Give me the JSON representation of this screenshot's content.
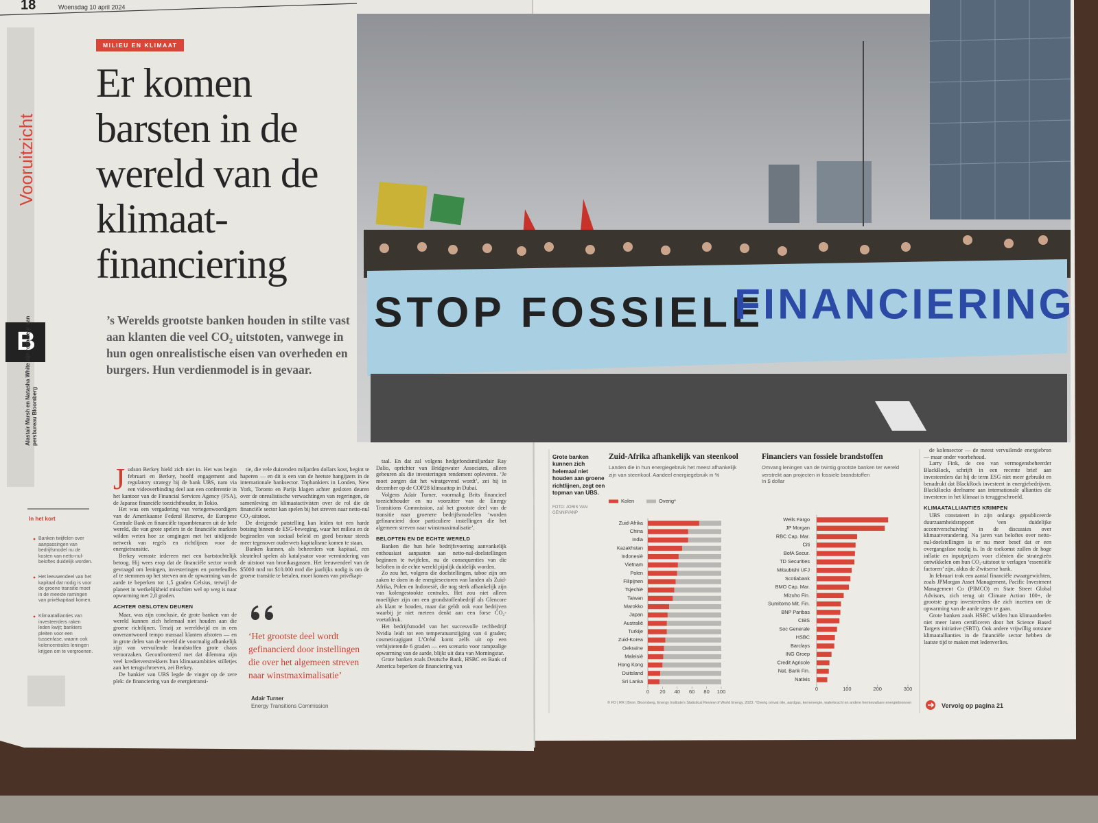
{
  "header": {
    "page_number": "18",
    "date": "Woensdag 10 april 2024"
  },
  "section_label": "Vooruitzicht",
  "section_letter": "B",
  "byline": "Alastair Marsh en Natasha White zijn redacteur van persbureau Bloomberg",
  "kicker": "MILIEU EN KLIMAAT",
  "headline": "Er komen barsten in de wereld van de klimaat-financiering",
  "lead": "’s Werelds grootste banken houden in stilte vast aan klanten die veel CO₂ uitstoten, vanwege in hun ogen onrealistische eisen van overheden en burgers. Hun verdienmodel is in gevaar.",
  "photo": {
    "banner_dark": "STOP FOSSIELE",
    "banner_blue": "FINANCIERING"
  },
  "photo_caption": {
    "text": "Grote banken kunnen zich helemaal niet houden aan groene richtlijnen, zegt een topman van UBS.",
    "credit": "FOTO: JORIS VAN GENNIP/ANP"
  },
  "sidebar": {
    "title": "In het kort",
    "items": [
      "Banken twijfelen over aanpassingen van bedrijfsmodel nu de kosten van netto-nul-beloftes duidelijk worden.",
      "Het leeuwendeel van het kapitaal dat nodig is voor de groene transitie moet in de meeste ramingen van privékapitaal komen.",
      "Klimaatallianties van investeerders raken leden kwijt; bankiers pleiten voor een tussenfase, waarin ook kolencentrales leningen krijgen om te vergroenen."
    ]
  },
  "columns": [
    [
      {
        "type": "p",
        "text": "Judson Berkey hield zich niet in. Het was begin februari en Berkey, hoofd engagement and regulatory strategy bij de bank UBS, nam via een videoverbinding deel aan een conferentie in het kantoor van de Financial Services Agency (FSA), de Japanse financiële toezichthouder, in Tokio."
      },
      {
        "type": "p",
        "text": "Het was een vergadering van vertegenwoordigers van de Amerikaanse Federal Reserve, de Europese Centrale Bank en financiële topambtenaren uit de hele wereld, die van grote spelers in de financiële markten wilden weten hoe ze omgingen met het uitdijende netwerk van regels en richtlijnen voor de energietransitie."
      },
      {
        "type": "p",
        "text": "Berkey verraste iedereen met een hartstochtelijk betoog. Hij wees erop dat de financiële sector wordt gevraagd om leningen, investeringen en portefeuilles af te stemmen op het streven om de opwarming van de aarde te beperken tot 1,5 graden Celsius, terwijl de planeet in werkelijkheid misschien wel op weg is naar opwarming met 2,8 graden."
      },
      {
        "type": "h",
        "text": "ACHTER GESLOTEN DEUREN"
      },
      {
        "type": "p",
        "text": "Maar, was zijn conclusie, de grote banken van de wereld kunnen zich helemaal niet houden aan die groene richtlijnen. Tenzij ze wereldwijd en in een onverantwoord tempo massaal klanten afstoten — en in grote delen van de wereld die voormalig afhankelijk zijn van vervuilende brandstoffen grote chaos veroorzaken. Geconfronteerd met dat dilemma zijn veel kredietverstrekkers hun klimaatambities stilletjes aan het terugschroeven, zei Berkey."
      },
      {
        "type": "p",
        "text": "De bankier van UBS legde de vinger op de zere plek: de financiering van de energietransi-"
      }
    ],
    [
      {
        "type": "p",
        "text": "tie, die vele duizenden miljarden dollars kost, begint te haperen — en dit is een van de heetste hangijzers in de internationale banksector. Topbankiers in Londen, New York, Toronto en Parijs klagen achter gesloten deuren over de onrealistische verwachtingen van regeringen, de samenleving en klimaatactivisten over de rol die de financiële sector kan spelen bij het streven naar netto-nul CO₂-uitstoot."
      },
      {
        "type": "p",
        "text": "De dreigende patstelling kan leiden tot een harde botsing binnen de ESG-beweging, waar het milieu en de beginselen van sociaal beleid en goed bestuur steeds meer tegenover ouderwets kapitalisme komen te staan."
      },
      {
        "type": "p",
        "text": "Banken kunnen, als beheerders van kapitaal, een sleutelrol spelen als katalysator voor vermindering van de uitstoot van broeikasgassen. Het leeuwendeel van de $5000 mrd tot $10.000 mrd die jaarlijks nodig is om de groene transitie te betalen, moet komen van privékapi-"
      }
    ],
    [
      {
        "type": "p",
        "text": "taal. En dat zal volgens hedgefondsmiljardair Ray Dalio, oprichter van Bridgewater Associates, alleen gebeuren als die investeringen rendement opleveren. ‘Je moet zorgen dat het winstgevend wordt’, zei hij in december op de COP28 klimaattop in Dubai."
      },
      {
        "type": "p",
        "text": "Volgens Adair Turner, voormalig Brits financieel toezichthouder en nu voorzitter van de Energy Transitions Commission, zal het grootste deel van de transitie naar groenere bedrijfsmodellen ‘worden gefinancierd door particuliere instellingen die het algemeen streven naar winstmaximalisatie’."
      },
      {
        "type": "h",
        "text": "BELOFTEN EN DE ECHTE WERELD"
      },
      {
        "type": "p",
        "text": "Banken die hun hele bedrijfsvoering aanvankelijk enthousiast aanpasten aan netto-nul-doelstellingen beginnen te twijfelen, nu de consequenties van die beloften in de echte wereld pijnlijk duidelijk worden."
      },
      {
        "type": "p",
        "text": "Zo zou het, volgens die doelstellingen, taboe zijn om zaken te doen in de energiesectoren van landen als Zuid-Afrika, Polen en Indonesië, die nog sterk afhankelijk zijn van kolengestookte centrales. Het zou niet alleen moeilijker zijn om een grondstoffenbedrijf als Glencore als klant te houden, maar dat geldt ook voor bedrijven waarbij je niet meteen denkt aan een forse CO₂-voetafdruk."
      },
      {
        "type": "p",
        "text": "Het bedrijfsmodel van het succesvolle techbedrijf Nvidia leidt tot een temperatuurstijging van 4 graden; cosmeticagigant L’Oréal komt zelfs uit op een verbijsterende 6 graden — een scenario voor rampzalige opwarming van de aarde, blijkt uit data van Morningstar."
      },
      {
        "type": "p",
        "text": "Grote banken zoals Deutsche Bank, HSBC en Bank of America beperken de financiering van"
      }
    ],
    [
      {
        "type": "p",
        "text": "de kolensector — de meest vervuilende energiebron — maar onder voorbehoud."
      },
      {
        "type": "p",
        "text": "Larry Fink, de ceo van vermogensbeheerder BlackRock, schrijft in een recente brief aan investeerders dat hij de term ESG niet meer gebruikt en benadrukt dat BlackRock investeert in energiebedrijven. BlackRocks deelname aan internationale allianties die investeren in het klimaat is teruggeschroefd."
      },
      {
        "type": "h",
        "text": "KLIMAATALLIANTIES KRIMPEN"
      },
      {
        "type": "p",
        "text": "UBS constateert in zijn onlangs gepubliceerde duurzaamheidsrapport ‘een duidelijke accentverschuiving’ in de discussies over klimaatverandering. Na jaren van beloftes over netto-nul-doelstellingen is er nu meer besef dat er een overgangsfase nodig is. In de toekomst zullen de hoge inflatie en inputprijzen voor cliënten die strategieën ontwikkelen om hun CO₂-uitstoot te verlagen ‘essentiële factoren’ zijn, aldus de Zwitserse bank."
      },
      {
        "type": "p",
        "text": "In februari trok een aantal financiële zwaargewichten, zoals JPMorgan Asset Management, Pacific Investment Management Co (PIMCO) en State Street Global Advisors, zich terug uit Climate Action 100+, de grootste groep investeerders die zich inzetten om de opwarming van de aarde tegen te gaan."
      },
      {
        "type": "p",
        "text": "Grote banken zoals HSBC wilden hun klimaatdoelen niet meer laten certificeren door het Science Based Targets initiative (SBTi). Ook andere vrijwillig ontstane klimaatallianties in de financiële sector hebben de laatste tijd te maken met ledenverlies."
      }
    ]
  ],
  "quote": {
    "text": "‘Het grootste deel wordt gefinancierd door instellingen die over het algemeen streven naar winstmaximalisatie’",
    "author": "Adair Turner",
    "role": "Energy Transitions Commission"
  },
  "chart_data": [
    {
      "type": "bar",
      "orientation": "horizontal",
      "stacked": true,
      "title": "Zuid-Afrika afhankelijk van steenkool",
      "subtitle": "Landen die in hun energiegebruik het meest afhankelijk zijn van steenkool. Aandeel energiegebruik in %",
      "categories": [
        "Zuid-Afrika",
        "China",
        "India",
        "Kazakhstan",
        "Indonesië",
        "Vietnam",
        "Polen",
        "Filipijnen",
        "Tsjechië",
        "Taiwan",
        "Marokko",
        "Japan",
        "Australië",
        "Turkije",
        "Zuid-Korea",
        "Oekraïne",
        "Maleisië",
        "Hong Kong",
        "Duitsland",
        "Sri Lanka"
      ],
      "series": [
        {
          "name": "Kolen",
          "color": "#d8463a",
          "values": [
            70,
            55,
            55,
            47,
            42,
            41,
            40,
            38,
            36,
            34,
            29,
            27,
            26,
            26,
            24,
            22,
            21,
            20,
            17,
            16
          ]
        },
        {
          "name": "Overig*",
          "color": "#b9b7b3",
          "values": [
            30,
            45,
            45,
            53,
            58,
            59,
            60,
            62,
            64,
            66,
            71,
            73,
            74,
            74,
            76,
            78,
            79,
            80,
            83,
            84
          ]
        }
      ],
      "xlim": [
        0,
        100
      ],
      "xticks": [
        0,
        20,
        40,
        60,
        80,
        100
      ],
      "legend": "top-left"
    },
    {
      "type": "bar",
      "orientation": "horizontal",
      "title": "Financiers van fossiele brandstoffen",
      "subtitle": "Omvang leningen van de twintig grootste banken ter wereld verstrekt aan projecten in fossiele brandstoffen",
      "unit": "In $ dollar",
      "categories": [
        "Wells Fargo",
        "JP Morgan",
        "RBC Cap. Mar.",
        "Citi",
        "BofA Secur.",
        "TD Securities",
        "Mitsubishi UFJ",
        "Scotiabank",
        "BMO Cap. Mar.",
        "Mizuho Fin.",
        "Sumitomo Mit. Fin.",
        "BNP Paribas",
        "CIBS",
        "Soc Generale",
        "HSBC",
        "Barclays",
        "ING Groep",
        "Credit Agricole",
        "Nat. Bank Fin.",
        "Natixis"
      ],
      "values": [
        235,
        224,
        133,
        128,
        126,
        124,
        115,
        111,
        106,
        89,
        80,
        78,
        75,
        67,
        60,
        58,
        49,
        42,
        40,
        35
      ],
      "color": "#d8463a",
      "xlim": [
        0,
        300
      ],
      "xticks": [
        0,
        100,
        200,
        300
      ]
    }
  ],
  "chart_source": "© FD | RR | Bron: Bloomberg, Energy Institute's Statistical Review of World Energy, 2023. *Overig omvat olie, aardgas, kernenergie, waterkracht en andere hernieuwbare energiebronnen",
  "continued": "Vervolg op pagina 21"
}
